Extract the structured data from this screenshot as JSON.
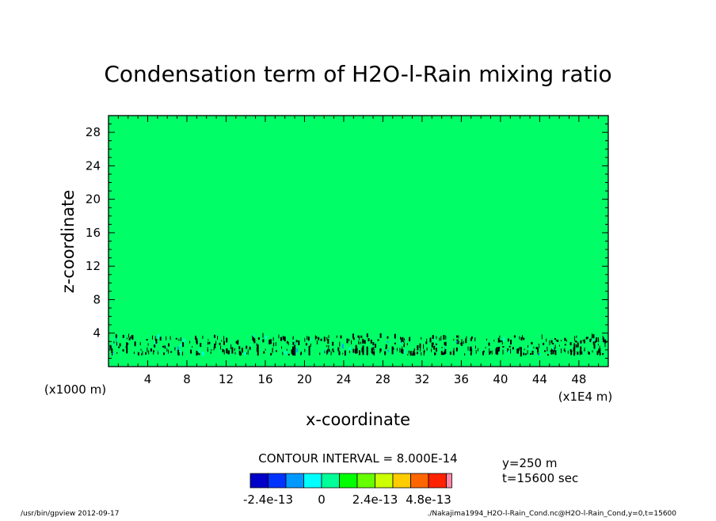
{
  "chart_data": {
    "type": "heatmap",
    "title": "Condensation term of H2O-l-Rain mixing ratio",
    "xlabel": "x-coordinate",
    "ylabel": "z-coordinate",
    "x_scale_note": "(x1E4 m)",
    "y_scale_note": "(x1000 m)",
    "xlim": [
      0,
      51
    ],
    "ylim": [
      0,
      30
    ],
    "x_ticks": [
      4,
      8,
      12,
      16,
      20,
      24,
      28,
      32,
      36,
      40,
      44,
      48
    ],
    "y_ticks": [
      4,
      8,
      12,
      16,
      20,
      24,
      28
    ],
    "background_value": 0,
    "background_color": "#00ff66",
    "noise_band_z": [
      1.0,
      3.8
    ],
    "contour_interval_label": "CONTOUR INTERVAL = 8.000E-14",
    "colorbar": {
      "colors": [
        "#0000c8",
        "#0033ff",
        "#0099ff",
        "#00ffff",
        "#00ff99",
        "#00ff00",
        "#66ff00",
        "#ccff00",
        "#ffcc00",
        "#ff6600",
        "#ff2200",
        "#ff88aa"
      ],
      "tick_labels": [
        "-2.4e-13",
        "0",
        "2.4e-13",
        "4.8e-13"
      ],
      "tick_boundary_index": [
        0,
        3,
        6,
        9
      ]
    }
  },
  "annotations": {
    "y_slice": "y=250 m",
    "time": "t=15600 sec",
    "footer_left": "/usr/bin/gpview  2012-09-17",
    "footer_right": "./Nakajima1994_H2O-l-Rain_Cond.nc@H2O-l-Rain_Cond,y=0,t=15600"
  }
}
